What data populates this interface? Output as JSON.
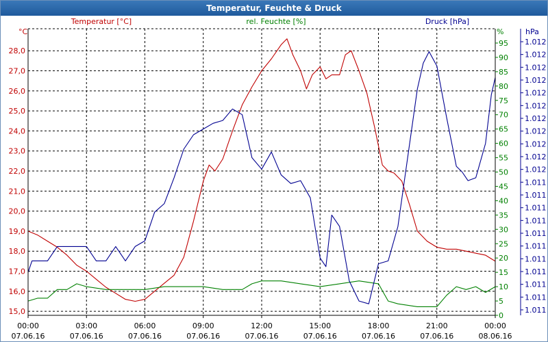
{
  "window": {
    "title": "Temperatur, Feuchte & Druck"
  },
  "colors": {
    "temperature": "#c00000",
    "humidity": "#008000",
    "pressure": "#000090",
    "grid": "#000000"
  },
  "chart_data": {
    "type": "line",
    "title": "Temperatur, Feuchte & Druck",
    "x_range_hours": [
      0,
      24
    ],
    "x_ticks": [
      {
        "h": 0,
        "time": "00:00",
        "date": "07.06.16"
      },
      {
        "h": 3,
        "time": "03:00",
        "date": "07.06.16"
      },
      {
        "h": 6,
        "time": "06:00",
        "date": "07.06.16"
      },
      {
        "h": 9,
        "time": "09:00",
        "date": "07.06.16"
      },
      {
        "h": 12,
        "time": "12:00",
        "date": "07.06.16"
      },
      {
        "h": 15,
        "time": "15:00",
        "date": "07.06.16"
      },
      {
        "h": 18,
        "time": "18:00",
        "date": "07.06.16"
      },
      {
        "h": 21,
        "time": "21:00",
        "date": "07.06.16"
      },
      {
        "h": 24,
        "time": "00:00",
        "date": "08.06.16"
      }
    ],
    "axes": {
      "temperature": {
        "label": "Temperatur [°C]",
        "unit": "°C",
        "range": [
          14.8,
          29.1
        ],
        "ticks": [
          "15,0",
          "16,0",
          "17,0",
          "18,0",
          "19,0",
          "20,0",
          "21,0",
          "22,0",
          "23,0",
          "24,0",
          "25,0",
          "26,0",
          "27,0",
          "28,0"
        ]
      },
      "humidity": {
        "label": "rel. Feuchte [%]",
        "unit": "%",
        "range": [
          0,
          100
        ],
        "ticks": [
          "0",
          "5",
          "10",
          "15",
          "20",
          "25",
          "30",
          "35",
          "40",
          "45",
          "50",
          "55",
          "60",
          "65",
          "70",
          "75",
          "80",
          "85",
          "90",
          "95"
        ]
      },
      "pressure": {
        "label": "Druck [hPa]",
        "unit": "hPa",
        "range": [
          0,
          100
        ],
        "ticks": [
          "1.011",
          "1.011",
          "1.011",
          "1.011",
          "1.011",
          "1.011",
          "1.011",
          "1.011",
          "1.011",
          "1.011",
          "1.011",
          "1.012",
          "1.012",
          "1.012",
          "1.012",
          "1.012",
          "1.012",
          "1.012",
          "1.012",
          "1.012",
          "1.012",
          "1.012"
        ]
      }
    },
    "series": [
      {
        "name": "Temperatur",
        "axis": "temperature",
        "x": [
          0,
          0.5,
          1,
          1.5,
          2,
          2.5,
          3,
          3.5,
          4,
          4.5,
          5,
          5.5,
          6,
          6.5,
          7,
          7.5,
          8,
          8.5,
          9,
          9.3,
          9.6,
          10,
          10.5,
          11,
          11.5,
          12,
          12.5,
          13,
          13.3,
          13.6,
          14,
          14.3,
          14.6,
          15,
          15.3,
          15.6,
          16,
          16.3,
          16.6,
          17,
          17.4,
          17.8,
          18.2,
          18.5,
          18.8,
          19.2,
          19.6,
          20,
          20.5,
          21,
          21.5,
          22,
          22.5,
          23,
          23.5,
          24
        ],
        "values": [
          19.0,
          18.8,
          18.5,
          18.2,
          17.8,
          17.3,
          17.0,
          16.6,
          16.2,
          15.9,
          15.6,
          15.5,
          15.6,
          16.0,
          16.4,
          16.8,
          17.7,
          19.5,
          21.5,
          22.3,
          22.0,
          22.6,
          24.0,
          25.3,
          26.2,
          27.0,
          27.6,
          28.3,
          28.6,
          27.8,
          27.0,
          26.1,
          26.8,
          27.2,
          26.6,
          26.8,
          26.8,
          27.8,
          28.0,
          27.0,
          25.9,
          24.2,
          22.3,
          22.0,
          21.9,
          21.5,
          20.3,
          19.0,
          18.5,
          18.2,
          18.1,
          18.1,
          18.0,
          17.9,
          17.8,
          17.5
        ]
      },
      {
        "name": "rel. Feuchte",
        "axis": "humidity",
        "x": [
          0,
          0.5,
          1,
          1.5,
          2,
          2.5,
          3,
          4,
          5,
          6,
          7,
          8,
          9,
          10,
          11,
          11.5,
          12,
          13,
          14,
          15,
          16,
          17,
          18,
          18.5,
          19,
          20,
          20.5,
          21,
          21.5,
          22,
          22.5,
          23,
          23.5,
          24
        ],
        "values": [
          5,
          6,
          6,
          9,
          9,
          11,
          10,
          9,
          9,
          9,
          10,
          10,
          10,
          9,
          9,
          11,
          12,
          12,
          11,
          10,
          11,
          12,
          11,
          5,
          4,
          3,
          3,
          3,
          7,
          10,
          9,
          10,
          8,
          10
        ]
      },
      {
        "name": "Druck",
        "axis": "pressure",
        "x": [
          0,
          0.2,
          1,
          1.5,
          2,
          2.5,
          3,
          3.5,
          4,
          4.5,
          5,
          5.5,
          6,
          6.5,
          7,
          7.5,
          8,
          8.5,
          9,
          9.5,
          10,
          10.5,
          11,
          11.5,
          12,
          12.5,
          13,
          13.5,
          14,
          14.5,
          15,
          15.3,
          15.6,
          16,
          16.5,
          17,
          17.5,
          18,
          18.5,
          19,
          19.5,
          20,
          20.3,
          20.6,
          21,
          21.5,
          22,
          22.3,
          22.6,
          23,
          23.5,
          23.8,
          24
        ],
        "values": [
          15,
          19,
          19,
          24,
          24,
          24,
          24,
          19,
          19,
          24,
          19,
          24,
          26,
          36,
          39,
          48,
          58,
          63,
          65,
          67,
          68,
          72,
          70,
          55,
          51,
          57,
          49,
          46,
          47,
          41,
          20,
          17,
          35,
          31,
          12,
          5,
          4,
          18,
          19,
          31,
          55,
          79,
          88,
          92,
          87,
          69,
          52,
          50,
          47,
          48,
          60,
          77,
          83
        ]
      }
    ]
  }
}
